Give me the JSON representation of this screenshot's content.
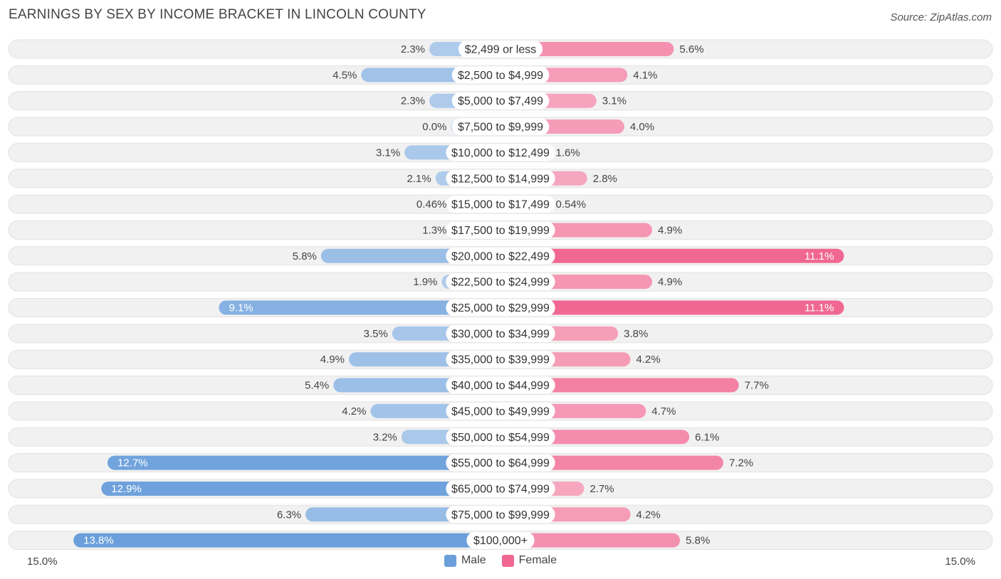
{
  "header": {
    "title": "EARNINGS BY SEX BY INCOME BRACKET IN LINCOLN COUNTY",
    "source": "Source: ZipAtlas.com"
  },
  "axis": {
    "left_label": "15.0%",
    "right_label": "15.0%"
  },
  "legend": {
    "male_label": "Male",
    "female_label": "Female"
  },
  "colors": {
    "male_strong": "#6a9fdb",
    "male_light": "#a9c8ec",
    "female_strong": "#f06892",
    "female_light": "#f7abc3",
    "row_bg": "#f1f1f1",
    "row_border": "#e2e2e2"
  },
  "chart_data": {
    "type": "bar",
    "orientation": "horizontal-diverging",
    "title": "EARNINGS BY SEX BY INCOME BRACKET IN LINCOLN COUNTY",
    "xlim": [
      -15.0,
      15.0
    ],
    "categories": [
      "$2,499 or less",
      "$2,500 to $4,999",
      "$5,000 to $7,499",
      "$7,500 to $9,999",
      "$10,000 to $12,499",
      "$12,500 to $14,999",
      "$15,000 to $17,499",
      "$17,500 to $19,999",
      "$20,000 to $22,499",
      "$22,500 to $24,999",
      "$25,000 to $29,999",
      "$30,000 to $34,999",
      "$35,000 to $39,999",
      "$40,000 to $44,999",
      "$45,000 to $49,999",
      "$50,000 to $54,999",
      "$55,000 to $64,999",
      "$65,000 to $74,999",
      "$75,000 to $99,999",
      "$100,000+"
    ],
    "series": [
      {
        "name": "Male",
        "values": [
          2.3,
          4.5,
          2.3,
          0.0,
          3.1,
          2.1,
          0.46,
          1.3,
          5.8,
          1.9,
          9.1,
          3.5,
          4.9,
          5.4,
          4.2,
          3.2,
          12.7,
          12.9,
          6.3,
          13.8
        ],
        "labels": [
          "2.3%",
          "4.5%",
          "2.3%",
          "0.0%",
          "3.1%",
          "2.1%",
          "0.46%",
          "1.3%",
          "5.8%",
          "1.9%",
          "9.1%",
          "3.5%",
          "4.9%",
          "5.4%",
          "4.2%",
          "3.2%",
          "12.7%",
          "12.9%",
          "6.3%",
          "13.8%"
        ]
      },
      {
        "name": "Female",
        "values": [
          5.6,
          4.1,
          3.1,
          4.0,
          1.6,
          2.8,
          0.54,
          4.9,
          11.1,
          4.9,
          11.1,
          3.8,
          4.2,
          7.7,
          4.7,
          6.1,
          7.2,
          2.7,
          4.2,
          5.8
        ],
        "labels": [
          "5.6%",
          "4.1%",
          "3.1%",
          "4.0%",
          "1.6%",
          "2.8%",
          "0.54%",
          "4.9%",
          "11.1%",
          "4.9%",
          "11.1%",
          "3.8%",
          "4.2%",
          "7.7%",
          "4.7%",
          "6.1%",
          "7.2%",
          "2.7%",
          "4.2%",
          "5.8%"
        ]
      }
    ]
  }
}
